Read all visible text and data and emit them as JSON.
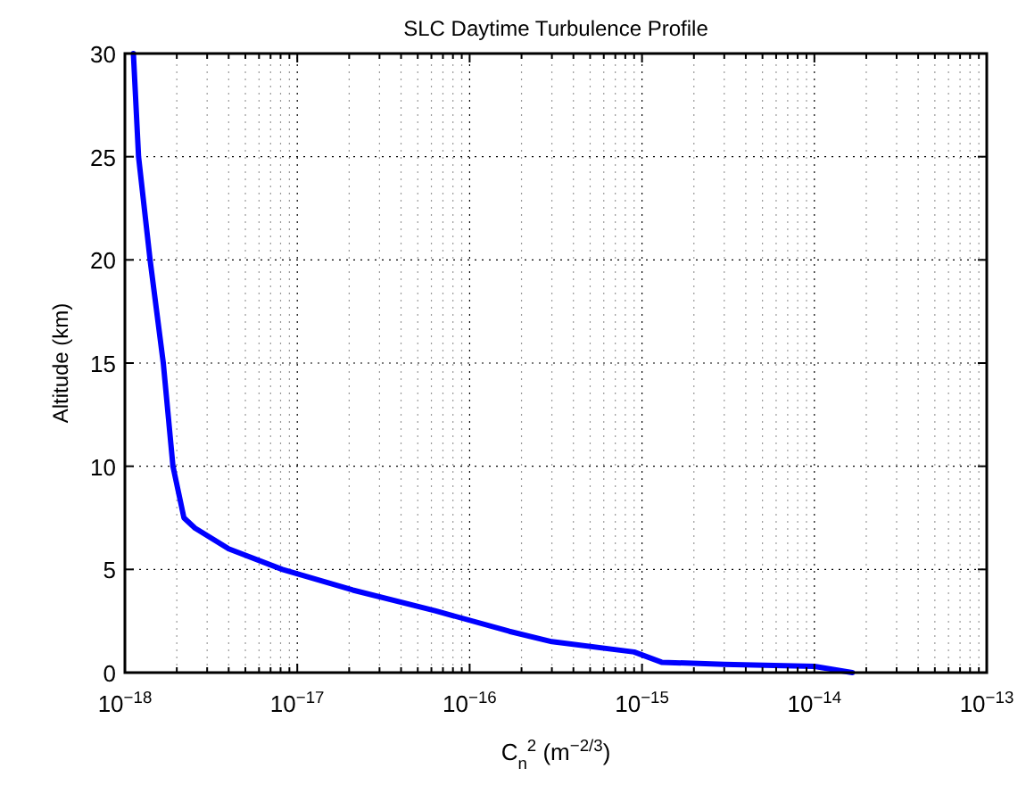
{
  "chart_data": {
    "type": "line",
    "title": "SLC Daytime Turbulence Profile",
    "xlabel": "C$_{n}$$^{2}$ (m$^{−2/3}$)",
    "ylabel": "Altitude (km)",
    "log": "x",
    "grid": true,
    "marker": "none",
    "line_style": "solid",
    "xlim": [
      1e-18,
      1e-13
    ],
    "ylim": [
      0,
      30
    ],
    "xticks": [
      {
        "value": 1e-18,
        "label": "10$^{−18}$"
      },
      {
        "value": 1e-17,
        "label": "10$^{−17}$"
      },
      {
        "value": 1e-16,
        "label": "10$^{−16}$"
      },
      {
        "value": 1e-15,
        "label": "10$^{−15}$"
      },
      {
        "value": 1e-14,
        "label": "10$^{−14}$"
      },
      {
        "value": 1e-13,
        "label": "10$^{−13}$"
      }
    ],
    "yticks": [
      0,
      5,
      10,
      15,
      20,
      25,
      30
    ],
    "series": [
      {
        "color": "#0000ff",
        "x": [
          1.66e-14,
          1e-14,
          3e-15,
          1.3e-15,
          9e-16,
          3e-16,
          1.7e-16,
          6.3e-17,
          2.1e-17,
          8.2e-18,
          4e-18,
          2.55e-18,
          2.2e-18,
          1.9e-18,
          1.67e-18,
          1.4e-18,
          1.2e-18,
          1.12e-18
        ],
        "values": [
          0,
          0.3,
          0.4,
          0.5,
          1.0,
          1.5,
          2,
          3,
          4,
          5,
          6,
          7,
          7.5,
          10,
          15,
          20,
          25,
          30
        ]
      }
    ]
  }
}
